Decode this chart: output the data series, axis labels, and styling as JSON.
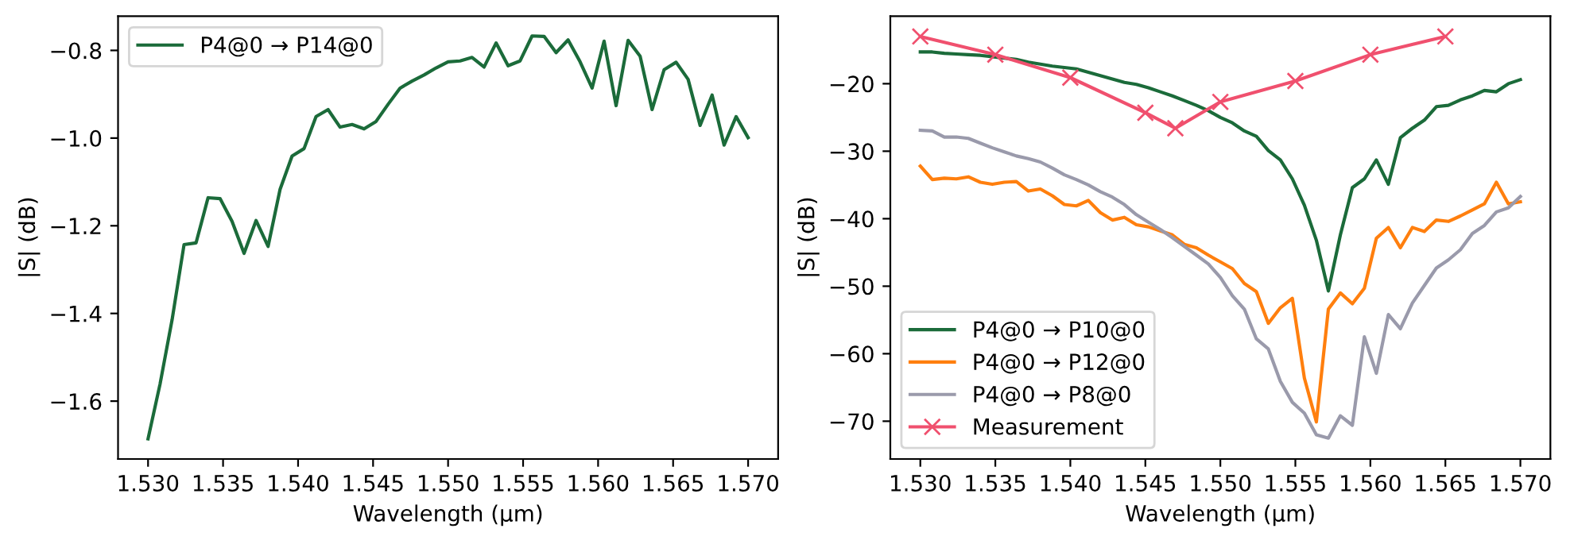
{
  "chart_data": [
    {
      "type": "line",
      "xlabel": "Wavelength (µm)",
      "ylabel": "|S| (dB)",
      "legend": "top left",
      "grid": false,
      "xlim": [
        1.528,
        1.572
      ],
      "ylim": [
        -1.732,
        -0.722
      ],
      "xticks": [
        {
          "value": 1.53,
          "label": "1.530"
        },
        {
          "value": 1.535,
          "label": "1.535"
        },
        {
          "value": 1.54,
          "label": "1.540"
        },
        {
          "value": 1.545,
          "label": "1.545"
        },
        {
          "value": 1.55,
          "label": "1.550"
        },
        {
          "value": 1.555,
          "label": "1.555"
        },
        {
          "value": 1.56,
          "label": "1.560"
        },
        {
          "value": 1.565,
          "label": "1.565"
        },
        {
          "value": 1.57,
          "label": "1.570"
        }
      ],
      "yticks": [
        {
          "value": -1.6,
          "label": "−1.6"
        },
        {
          "value": -1.4,
          "label": "−1.4"
        },
        {
          "value": -1.2,
          "label": "−1.2"
        },
        {
          "value": -1.0,
          "label": "−1.0"
        },
        {
          "value": -0.8,
          "label": "−0.8"
        }
      ],
      "series": [
        {
          "name": "P4@0 → P14@0",
          "color": "#1b6b3a",
          "x": [
            1.53,
            1.5308,
            1.5316,
            1.5324,
            1.5332,
            1.534,
            1.5348,
            1.5356,
            1.5364,
            1.5372,
            1.538,
            1.5388,
            1.5396,
            1.5404,
            1.5412,
            1.542,
            1.5428,
            1.5436,
            1.5444,
            1.5452,
            1.546,
            1.5468,
            1.5476,
            1.5484,
            1.5492,
            1.55,
            1.5508,
            1.5516,
            1.5524,
            1.5532,
            1.554,
            1.5548,
            1.5556,
            1.5564,
            1.5572,
            1.558,
            1.5588,
            1.5596,
            1.5604,
            1.5612,
            1.562,
            1.5628,
            1.5636,
            1.5644,
            1.5652,
            1.566,
            1.5668,
            1.5676,
            1.5684,
            1.5692,
            1.57
          ],
          "values": [
            -1.686,
            -1.561,
            -1.415,
            -1.243,
            -1.239,
            -1.136,
            -1.138,
            -1.19,
            -1.263,
            -1.188,
            -1.247,
            -1.117,
            -1.041,
            -1.024,
            -0.951,
            -0.935,
            -0.975,
            -0.969,
            -0.979,
            -0.962,
            -0.923,
            -0.886,
            -0.87,
            -0.856,
            -0.84,
            -0.826,
            -0.824,
            -0.816,
            -0.838,
            -0.783,
            -0.835,
            -0.824,
            -0.767,
            -0.768,
            -0.805,
            -0.776,
            -0.826,
            -0.886,
            -0.779,
            -0.926,
            -0.777,
            -0.813,
            -0.935,
            -0.844,
            -0.827,
            -0.866,
            -0.971,
            -0.902,
            -1.016,
            -0.951,
            -0.999
          ]
        }
      ]
    },
    {
      "type": "line",
      "xlabel": "Wavelength (µm)",
      "ylabel": "|S| (dB)",
      "legend": "bottom left",
      "grid": false,
      "xlim": [
        1.528,
        1.572
      ],
      "ylim": [
        -75.6,
        -10.0
      ],
      "xticks": [
        {
          "value": 1.53,
          "label": "1.530"
        },
        {
          "value": 1.535,
          "label": "1.535"
        },
        {
          "value": 1.54,
          "label": "1.540"
        },
        {
          "value": 1.545,
          "label": "1.545"
        },
        {
          "value": 1.55,
          "label": "1.550"
        },
        {
          "value": 1.555,
          "label": "1.555"
        },
        {
          "value": 1.56,
          "label": "1.560"
        },
        {
          "value": 1.565,
          "label": "1.565"
        },
        {
          "value": 1.57,
          "label": "1.570"
        }
      ],
      "yticks": [
        {
          "value": -70,
          "label": "−70"
        },
        {
          "value": -60,
          "label": "−60"
        },
        {
          "value": -50,
          "label": "−50"
        },
        {
          "value": -40,
          "label": "−40"
        },
        {
          "value": -30,
          "label": "−30"
        },
        {
          "value": -20,
          "label": "−20"
        }
      ],
      "series": [
        {
          "name": "P4@0 → P10@0",
          "color": "#1b6b3a",
          "marker": "none",
          "x": [
            1.53,
            1.5308,
            1.5316,
            1.5324,
            1.5332,
            1.534,
            1.5348,
            1.5356,
            1.5364,
            1.5372,
            1.538,
            1.5388,
            1.5396,
            1.5404,
            1.5412,
            1.542,
            1.5428,
            1.5436,
            1.5444,
            1.5452,
            1.546,
            1.5468,
            1.5476,
            1.5484,
            1.5492,
            1.55,
            1.5508,
            1.5516,
            1.5524,
            1.5532,
            1.554,
            1.5548,
            1.5556,
            1.5564,
            1.5572,
            1.558,
            1.5588,
            1.5596,
            1.5604,
            1.5612,
            1.562,
            1.5628,
            1.5636,
            1.5644,
            1.5652,
            1.566,
            1.5668,
            1.5676,
            1.5684,
            1.5692,
            1.57
          ],
          "values": [
            -15.3,
            -15.3,
            -15.5,
            -15.6,
            -15.7,
            -15.8,
            -16.0,
            -16.2,
            -16.4,
            -16.8,
            -17.1,
            -17.4,
            -17.6,
            -17.8,
            -18.3,
            -18.8,
            -19.3,
            -19.8,
            -20.1,
            -20.6,
            -21.2,
            -21.8,
            -22.5,
            -23.2,
            -24.0,
            -25.0,
            -25.8,
            -27.0,
            -27.8,
            -29.9,
            -31.3,
            -34.1,
            -38.0,
            -43.2,
            -50.7,
            -42.4,
            -35.4,
            -34.1,
            -31.3,
            -34.9,
            -28.0,
            -26.6,
            -25.4,
            -23.4,
            -23.2,
            -22.4,
            -21.8,
            -21.0,
            -21.2,
            -20.0,
            -19.4
          ]
        },
        {
          "name": "P4@0 → P12@0",
          "color": "#ff7f0e",
          "marker": "none",
          "x": [
            1.53,
            1.5308,
            1.5316,
            1.5324,
            1.5332,
            1.534,
            1.5348,
            1.5356,
            1.5364,
            1.5372,
            1.538,
            1.5388,
            1.5396,
            1.5404,
            1.5412,
            1.542,
            1.5428,
            1.5436,
            1.5444,
            1.5452,
            1.546,
            1.5468,
            1.5476,
            1.5484,
            1.5492,
            1.55,
            1.5508,
            1.5516,
            1.5524,
            1.5532,
            1.554,
            1.5548,
            1.5556,
            1.5564,
            1.5572,
            1.558,
            1.5588,
            1.5596,
            1.5604,
            1.5612,
            1.562,
            1.5628,
            1.5636,
            1.5644,
            1.5652,
            1.566,
            1.5668,
            1.5676,
            1.5684,
            1.5692,
            1.57
          ],
          "values": [
            -32.2,
            -34.2,
            -34.0,
            -34.1,
            -33.8,
            -34.6,
            -34.9,
            -34.6,
            -34.5,
            -35.9,
            -35.6,
            -36.6,
            -37.9,
            -38.1,
            -37.3,
            -39.1,
            -40.2,
            -39.8,
            -40.9,
            -41.2,
            -41.8,
            -42.4,
            -43.8,
            -44.3,
            -45.4,
            -46.4,
            -47.4,
            -49.6,
            -50.8,
            -55.5,
            -53.2,
            -51.8,
            -63.6,
            -70.1,
            -53.4,
            -51.0,
            -52.6,
            -50.3,
            -42.9,
            -41.3,
            -44.3,
            -41.3,
            -41.9,
            -40.2,
            -40.4,
            -39.6,
            -38.7,
            -37.8,
            -34.6,
            -37.8,
            -37.5
          ]
        },
        {
          "name": "P4@0 → P8@0",
          "color": "#9a9aab",
          "marker": "none",
          "x": [
            1.53,
            1.5308,
            1.5316,
            1.5324,
            1.5332,
            1.534,
            1.5348,
            1.5356,
            1.5364,
            1.5372,
            1.538,
            1.5388,
            1.5396,
            1.5404,
            1.5412,
            1.542,
            1.5428,
            1.5436,
            1.5444,
            1.5452,
            1.546,
            1.5468,
            1.5476,
            1.5484,
            1.5492,
            1.55,
            1.5508,
            1.5516,
            1.5524,
            1.5532,
            1.554,
            1.5548,
            1.5556,
            1.5564,
            1.5572,
            1.558,
            1.5588,
            1.5596,
            1.5604,
            1.5612,
            1.562,
            1.5628,
            1.5636,
            1.5644,
            1.5652,
            1.566,
            1.5668,
            1.5676,
            1.5684,
            1.5692,
            1.57
          ],
          "values": [
            -26.9,
            -27.0,
            -27.9,
            -27.9,
            -28.1,
            -28.8,
            -29.5,
            -30.1,
            -30.7,
            -31.1,
            -31.6,
            -32.5,
            -33.5,
            -34.2,
            -35.0,
            -36.0,
            -36.8,
            -37.9,
            -39.4,
            -40.5,
            -41.6,
            -42.8,
            -44.1,
            -45.4,
            -46.7,
            -48.7,
            -51.4,
            -53.4,
            -57.8,
            -59.3,
            -64.1,
            -67.2,
            -68.8,
            -72.0,
            -72.5,
            -69.2,
            -70.6,
            -57.5,
            -62.9,
            -54.2,
            -56.3,
            -52.5,
            -49.9,
            -47.3,
            -46.1,
            -44.6,
            -42.2,
            -41.0,
            -39.0,
            -38.4,
            -36.7
          ]
        },
        {
          "name": "Measurement",
          "color": "#f0506e",
          "marker": "cross",
          "x": [
            1.53,
            1.535,
            1.54,
            1.545,
            1.547,
            1.55,
            1.555,
            1.56,
            1.565
          ],
          "values": [
            -13.0,
            -15.7,
            -19.1,
            -24.3,
            -26.6,
            -22.7,
            -19.6,
            -15.7,
            -13.0
          ]
        }
      ]
    }
  ]
}
